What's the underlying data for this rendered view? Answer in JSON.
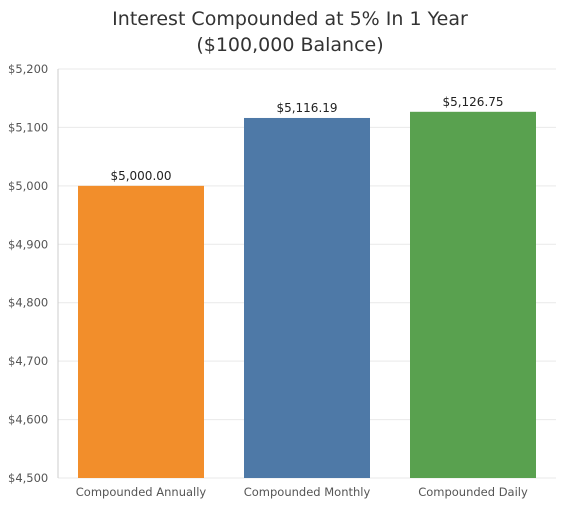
{
  "chart_data": {
    "type": "bar",
    "title": "Interest Compounded at 5% In 1 Year",
    "subtitle": "($100,000 Balance)",
    "categories": [
      "Compounded Annually",
      "Compounded Monthly",
      "Compounded Daily"
    ],
    "values": [
      5000.0,
      5116.19,
      5126.75
    ],
    "value_labels": [
      "$5,000.00",
      "$5,116.19",
      "$5,126.75"
    ],
    "colors": [
      "#f28e2b",
      "#4e79a7",
      "#59a14f"
    ],
    "ylim": [
      4500,
      5200
    ],
    "yticks": [
      4500,
      4600,
      4700,
      4800,
      4900,
      5000,
      5100,
      5200
    ],
    "ytick_labels": [
      "$4,500",
      "$4,600",
      "$4,700",
      "$4,800",
      "$4,900",
      "$5,000",
      "$5,100",
      "$5,200"
    ],
    "xlabel": "",
    "ylabel": "",
    "grid": true,
    "legend": "none"
  }
}
